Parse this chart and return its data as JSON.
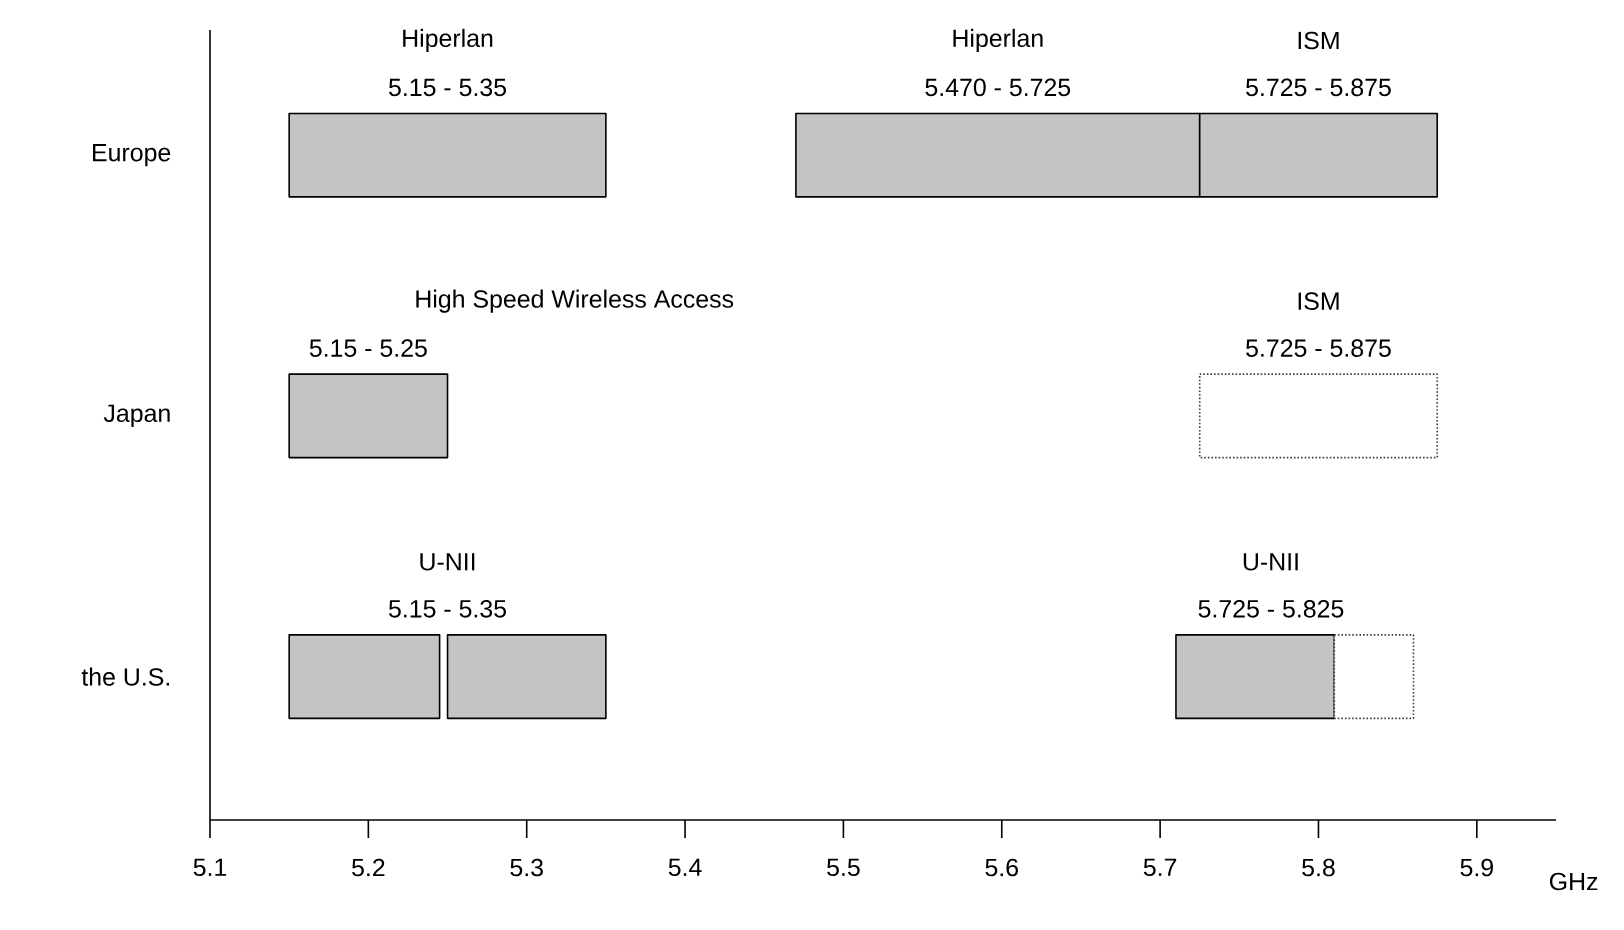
{
  "chart_data": {
    "type": "bar",
    "orientation": "horizontal",
    "xlabel": "GHz",
    "categories": [
      "Europe",
      "Japan",
      "the U.S."
    ],
    "series": [
      {
        "color": "#c4c4c4",
        "base": [
          5.15,
          5.15,
          5.15
        ],
        "values": [
          0.2,
          0.1,
          0.095
        ]
      },
      {
        "color": "#c4c4c4",
        "base": [
          5.47,
          null,
          5.25
        ],
        "values": [
          0.255,
          null,
          0.1
        ]
      },
      {
        "color": "#c4c4c4",
        "base": [
          5.725,
          null,
          5.71
        ],
        "values": [
          0.15,
          null,
          0.1
        ]
      },
      {
        "color": "#ffffff",
        "line_style": "dotted",
        "base": [
          null,
          5.725,
          5.81
        ],
        "values": [
          null,
          0.15,
          0.05
        ]
      }
    ],
    "xlim": [
      5.1,
      5.95
    ],
    "xticks": [
      5.1,
      5.2,
      5.3,
      5.4,
      5.5,
      5.6,
      5.7,
      5.8,
      5.9
    ],
    "annotations": [
      "Hiperlan",
      "5.15 - 5.35",
      "Hiperlan",
      "5.470 - 5.725",
      "ISM",
      "5.725 - 5.875",
      "High Speed Wireless Access",
      "5.15 - 5.25",
      "ISM",
      "5.725 - 5.875",
      "U-NII",
      "5.15 - 5.35",
      "U-NII",
      "5.725 - 5.825"
    ]
  }
}
